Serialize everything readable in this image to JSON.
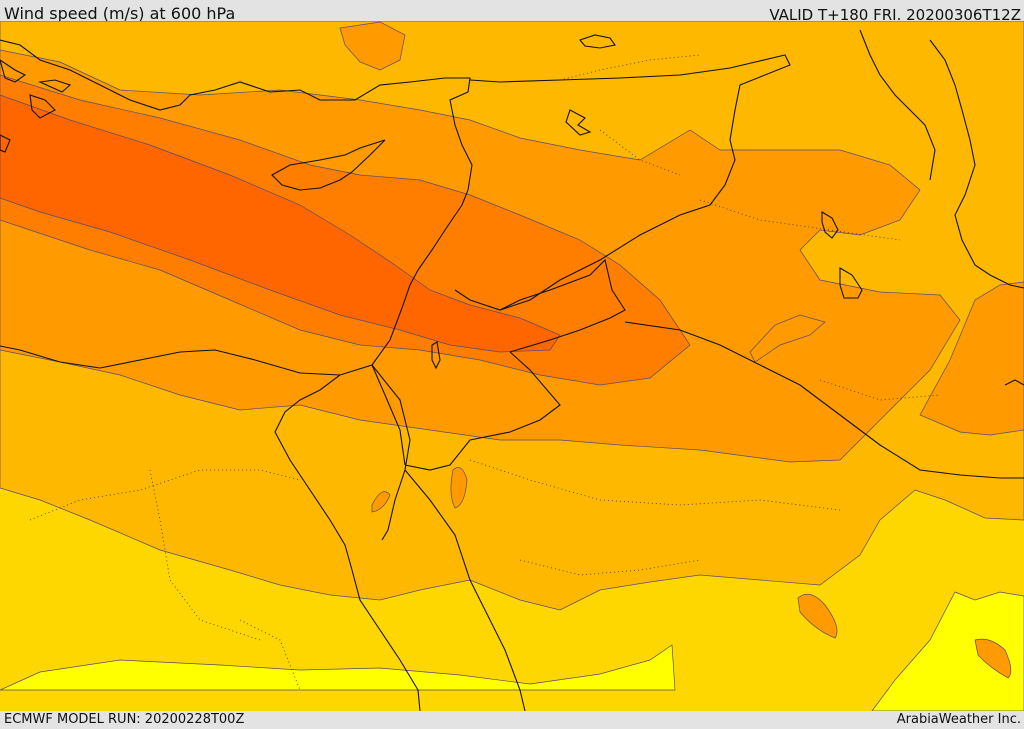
{
  "header": {
    "title": "Wind speed (m/s) at 600 hPa",
    "valid": "VALID T+180 FRI. 20200306T12Z"
  },
  "footer": {
    "model_run": "ECMWF MODEL RUN: 20200228T00Z",
    "credit": "ArabiaWeather Inc."
  },
  "map": {
    "colors": {
      "band_lightest": "#ffff00",
      "band_light": "#ffd700",
      "band_mid": "#ffb800",
      "band_orange": "#ff9a00",
      "band_deep": "#ff7e00",
      "band_deepest": "#ff6600",
      "contour_line": "#5a4a6e",
      "border_line": "#111111"
    }
  }
}
